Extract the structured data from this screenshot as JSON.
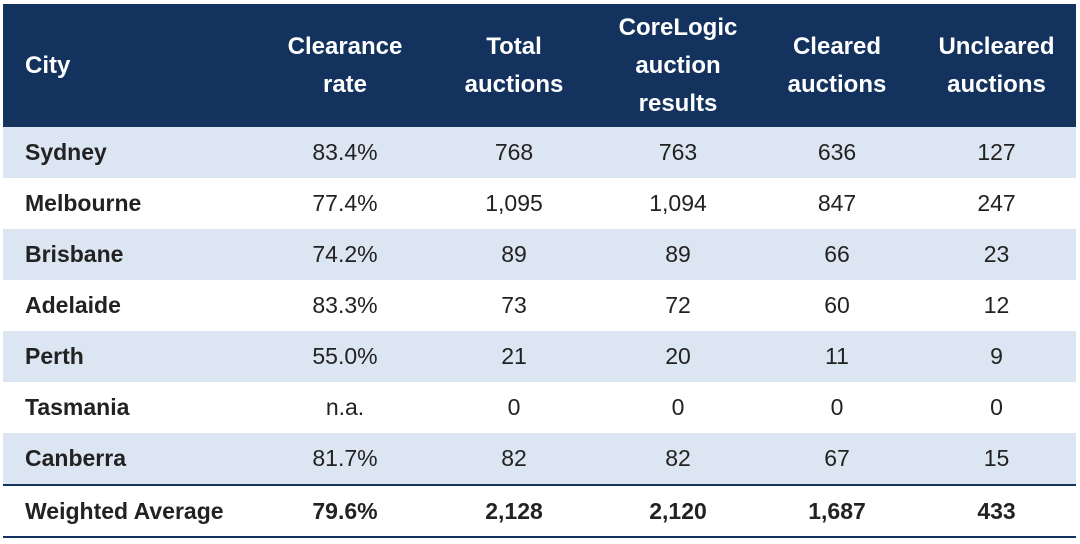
{
  "chart_data": {
    "type": "table",
    "columns": [
      "City",
      "Clearance rate",
      "Total auctions",
      "CoreLogic auction results",
      "Cleared auctions",
      "Uncleared auctions"
    ],
    "rows": [
      [
        "Sydney",
        "83.4%",
        "768",
        "763",
        "636",
        "127"
      ],
      [
        "Melbourne",
        "77.4%",
        "1,095",
        "1,094",
        "847",
        "247"
      ],
      [
        "Brisbane",
        "74.2%",
        "89",
        "89",
        "66",
        "23"
      ],
      [
        "Adelaide",
        "83.3%",
        "73",
        "72",
        "60",
        "12"
      ],
      [
        "Perth",
        "55.0%",
        "21",
        "20",
        "11",
        "9"
      ],
      [
        "Tasmania",
        "n.a.",
        "0",
        "0",
        "0",
        "0"
      ],
      [
        "Canberra",
        "81.7%",
        "82",
        "82",
        "67",
        "15"
      ]
    ],
    "total": [
      "Weighted Average",
      "79.6%",
      "2,128",
      "2,120",
      "1,687",
      "433"
    ],
    "header_lines": [
      [
        "City"
      ],
      [
        "Clearance",
        "rate"
      ],
      [
        "Total",
        "auctions"
      ],
      [
        "CoreLogic",
        "auction",
        "results"
      ],
      [
        "Cleared",
        "auctions"
      ],
      [
        "Uncleared",
        "auctions"
      ]
    ]
  },
  "colors": {
    "header_bg": "#14325e",
    "band_bg": "#dce6f2",
    "text": "#222222"
  }
}
